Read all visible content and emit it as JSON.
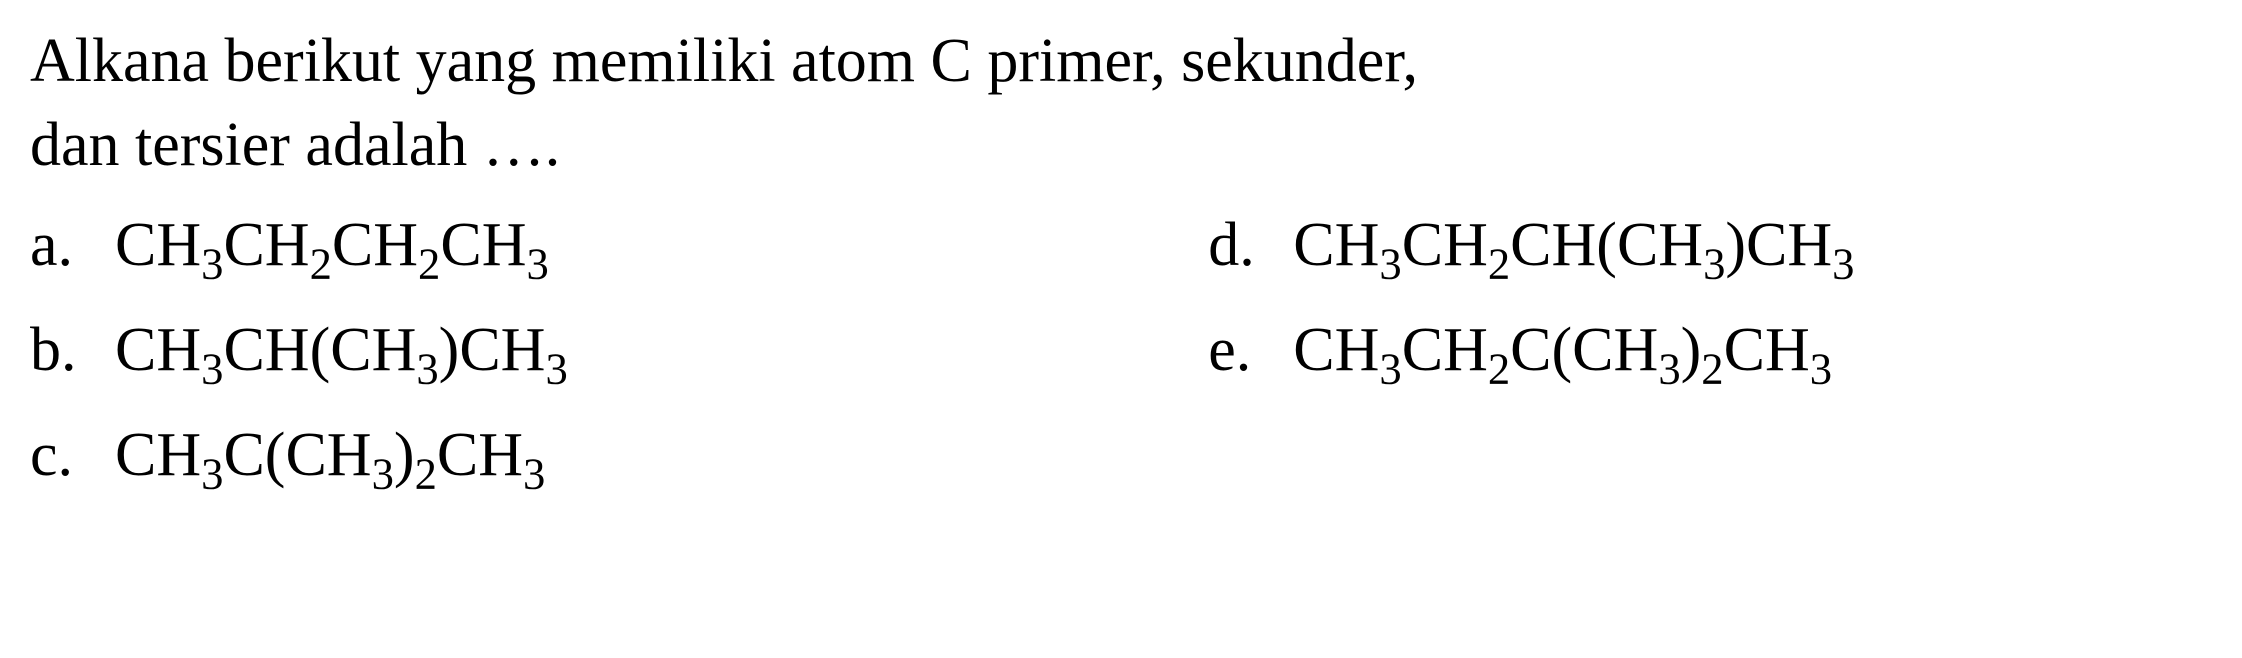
{
  "question": {
    "line1": "Alkana berikut yang memiliki atom C primer, sekunder,",
    "line2": "dan tersier adalah …."
  },
  "options": {
    "a": {
      "letter": "a.",
      "parts": [
        "CH",
        "3",
        "CH",
        "2",
        "CH",
        "2",
        "CH",
        "3"
      ]
    },
    "b": {
      "letter": "b.",
      "parts": [
        "CH",
        "3",
        "CH(CH",
        "3",
        ")CH",
        "3"
      ]
    },
    "c": {
      "letter": "c.",
      "parts": [
        "CH",
        "3",
        "C(CH",
        "3",
        ")",
        "2",
        "CH",
        "3"
      ]
    },
    "d": {
      "letter": "d.",
      "parts": [
        "CH",
        "3",
        "CH",
        "2",
        "CH(CH",
        "3",
        ")CH",
        "3"
      ]
    },
    "e": {
      "letter": "e.",
      "parts": [
        "CH",
        "3",
        "CH",
        "2",
        "C(CH",
        "3",
        ")",
        "2",
        "CH",
        "3"
      ]
    }
  },
  "styling": {
    "font_family": "Times New Roman",
    "font_size_main": 62,
    "text_color": "#000000",
    "background_color": "#ffffff",
    "sub_scale": 0.72
  }
}
